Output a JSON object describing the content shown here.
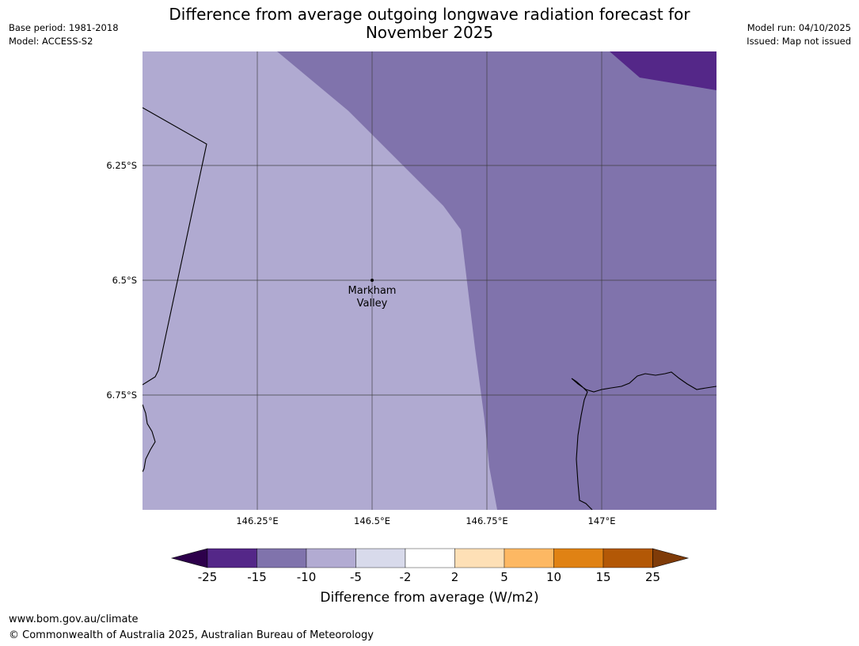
{
  "header": {
    "base_period": "Base period: 1981-2018",
    "model": "Model: ACCESS-S2",
    "title_line1": "Difference from average outgoing longwave radiation forecast for",
    "title_line2": "November 2025",
    "model_run": "Model run: 04/10/2025",
    "issued": "Issued: Map not issued"
  },
  "map": {
    "latitude_labels": [
      "6.25°S",
      "6.5°S",
      "6.75°S"
    ],
    "longitude_labels": [
      "146.25°E",
      "146.5°E",
      "146.75°E",
      "147°E"
    ],
    "place": {
      "name_line1": "Markham",
      "name_line2": "Valley"
    },
    "colors": {
      "band_minus5_to_minus10": "#b0aad1",
      "band_minus10_to_minus15": "#8073ac",
      "band_minus15_to_minus25": "#542788"
    }
  },
  "colorbar": {
    "ticks": [
      "-25",
      "-15",
      "-10",
      "-5",
      "-2",
      "2",
      "5",
      "10",
      "15",
      "25"
    ],
    "colors": [
      "#2d004b",
      "#542788",
      "#8073ac",
      "#b2abd2",
      "#d8daeb",
      "#ffffff",
      "#fee0b6",
      "#fdb863",
      "#e08214",
      "#b35806",
      "#7f3b08"
    ],
    "label": "Difference from average (W/m2)"
  },
  "footer": {
    "url": "www.bom.gov.au/climate",
    "copyright": "© Commonwealth of Australia 2025, Australian Bureau of Meteorology"
  }
}
